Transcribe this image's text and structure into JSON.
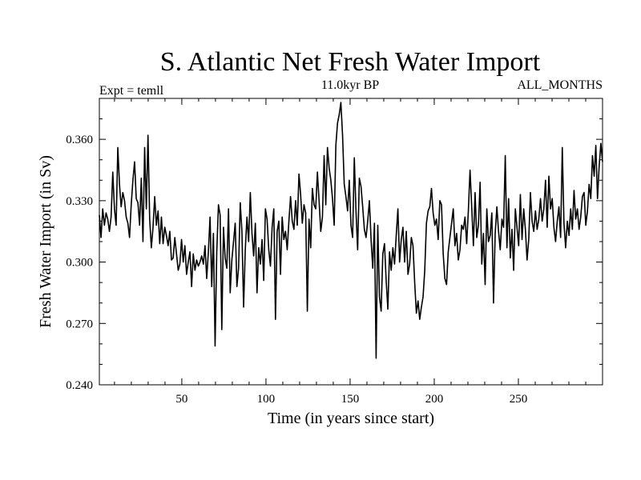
{
  "chart_data": {
    "type": "line",
    "title": "S. Atlantic Net Fresh Water Import",
    "subtitle_left": "Expt = temll",
    "subtitle_center": "11.0kyr BP",
    "subtitle_right": "ALL_MONTHS",
    "xlabel": "Time (in years since start)",
    "ylabel": "Fresh Water Import (in Sv)",
    "xlim": [
      1,
      300
    ],
    "ylim": [
      0.24,
      0.38
    ],
    "xticks": [
      50,
      100,
      150,
      200,
      250
    ],
    "xtick_labels": [
      "50",
      "100",
      "150",
      "200",
      "250"
    ],
    "yticks": [
      0.24,
      0.27,
      0.3,
      0.33,
      0.36
    ],
    "ytick_labels": [
      "0.240",
      "0.270",
      "0.300",
      "0.330",
      "0.360"
    ],
    "series": [
      {
        "name": "Fresh Water Import",
        "color": "#000000",
        "values": [
          0.323,
          0.312,
          0.326,
          0.318,
          0.324,
          0.321,
          0.315,
          0.322,
          0.344,
          0.326,
          0.318,
          0.356,
          0.338,
          0.327,
          0.334,
          0.33,
          0.322,
          0.319,
          0.312,
          0.328,
          0.34,
          0.349,
          0.331,
          0.329,
          0.318,
          0.341,
          0.31,
          0.356,
          0.326,
          0.362,
          0.321,
          0.307,
          0.317,
          0.332,
          0.318,
          0.325,
          0.309,
          0.322,
          0.309,
          0.317,
          0.313,
          0.308,
          0.315,
          0.301,
          0.302,
          0.312,
          0.304,
          0.296,
          0.299,
          0.311,
          0.3,
          0.308,
          0.294,
          0.3,
          0.305,
          0.288,
          0.304,
          0.296,
          0.301,
          0.298,
          0.3,
          0.303,
          0.299,
          0.308,
          0.292,
          0.305,
          0.322,
          0.288,
          0.314,
          0.259,
          0.305,
          0.328,
          0.323,
          0.267,
          0.317,
          0.302,
          0.297,
          0.326,
          0.285,
          0.301,
          0.31,
          0.319,
          0.288,
          0.297,
          0.329,
          0.315,
          0.278,
          0.306,
          0.322,
          0.31,
          0.334,
          0.314,
          0.303,
          0.319,
          0.285,
          0.307,
          0.299,
          0.311,
          0.291,
          0.326,
          0.321,
          0.306,
          0.298,
          0.317,
          0.326,
          0.272,
          0.315,
          0.32,
          0.294,
          0.322,
          0.311,
          0.315,
          0.306,
          0.32,
          0.332,
          0.32,
          0.316,
          0.33,
          0.318,
          0.343,
          0.333,
          0.319,
          0.328,
          0.324,
          0.276,
          0.321,
          0.307,
          0.336,
          0.328,
          0.326,
          0.344,
          0.33,
          0.315,
          0.322,
          0.352,
          0.328,
          0.356,
          0.346,
          0.34,
          0.331,
          0.318,
          0.357,
          0.368,
          0.372,
          0.378,
          0.362,
          0.338,
          0.332,
          0.325,
          0.34,
          0.318,
          0.312,
          0.351,
          0.325,
          0.306,
          0.341,
          0.337,
          0.327,
          0.316,
          0.312,
          0.32,
          0.33,
          0.311,
          0.297,
          0.319,
          0.253,
          0.318,
          0.283,
          0.276,
          0.304,
          0.309,
          0.291,
          0.277,
          0.305,
          0.296,
          0.307,
          0.299,
          0.313,
          0.326,
          0.3,
          0.311,
          0.317,
          0.3,
          0.315,
          0.294,
          0.299,
          0.312,
          0.308,
          0.29,
          0.275,
          0.281,
          0.272,
          0.278,
          0.283,
          0.296,
          0.319,
          0.325,
          0.327,
          0.336,
          0.324,
          0.318,
          0.321,
          0.311,
          0.33,
          0.328,
          0.304,
          0.292,
          0.289,
          0.305,
          0.312,
          0.319,
          0.326,
          0.308,
          0.314,
          0.301,
          0.306,
          0.318,
          0.316,
          0.322,
          0.309,
          0.325,
          0.345,
          0.327,
          0.308,
          0.334,
          0.312,
          0.318,
          0.339,
          0.299,
          0.314,
          0.289,
          0.326,
          0.31,
          0.313,
          0.324,
          0.28,
          0.314,
          0.327,
          0.315,
          0.306,
          0.321,
          0.317,
          0.352,
          0.307,
          0.331,
          0.302,
          0.316,
          0.296,
          0.326,
          0.317,
          0.308,
          0.333,
          0.311,
          0.326,
          0.316,
          0.301,
          0.311,
          0.334,
          0.32,
          0.315,
          0.325,
          0.316,
          0.321,
          0.331,
          0.32,
          0.326,
          0.34,
          0.317,
          0.342,
          0.326,
          0.331,
          0.317,
          0.31,
          0.32,
          0.327,
          0.312,
          0.356,
          0.319,
          0.307,
          0.32,
          0.313,
          0.326,
          0.316,
          0.335,
          0.321,
          0.326,
          0.316,
          0.322,
          0.332,
          0.334,
          0.318,
          0.325,
          0.338,
          0.331,
          0.352,
          0.342,
          0.357,
          0.331,
          0.347,
          0.358,
          0.349
        ]
      }
    ]
  }
}
